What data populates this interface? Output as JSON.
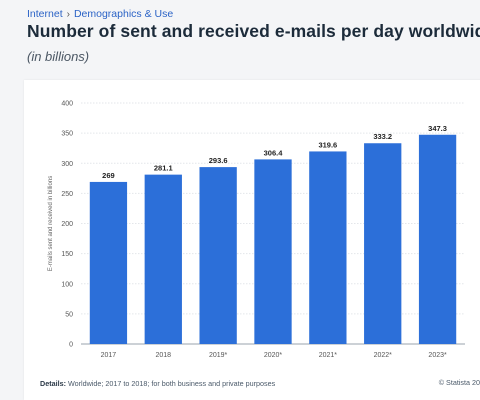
{
  "breadcrumb": {
    "items": [
      "Internet",
      "Demographics & Use"
    ],
    "separator": "›"
  },
  "page_title": "Number of sent and received e-mails per day worldwide",
  "subtitle": "(in billions)",
  "footer": {
    "details_label": "Details:",
    "details_text": "Worldwide; 2017 to 2018; for both business and private purposes",
    "source": "© Statista 20"
  },
  "colors": {
    "bar": "#2c6fd9",
    "link": "#2b63c6",
    "grid": "#e3e6ea"
  },
  "chart_data": {
    "type": "bar",
    "categories": [
      "2017",
      "2018",
      "2019*",
      "2020*",
      "2021*",
      "2022*",
      "2023*"
    ],
    "values": [
      269,
      281.1,
      293.6,
      306.4,
      319.6,
      333.2,
      347.3
    ],
    "data_labels": [
      "269",
      "281.1",
      "293.6",
      "306.4",
      "319.6",
      "333.2",
      "347.3"
    ],
    "title": "Number of sent and received e-mails per day worldwide",
    "subtitle": "(in billions)",
    "xlabel": "",
    "ylabel": "E-mails sent and received in billions",
    "ylim": [
      0,
      400
    ],
    "yticks": [
      0,
      50,
      100,
      150,
      200,
      250,
      300,
      350,
      400
    ],
    "grid": true,
    "legend": "none"
  }
}
